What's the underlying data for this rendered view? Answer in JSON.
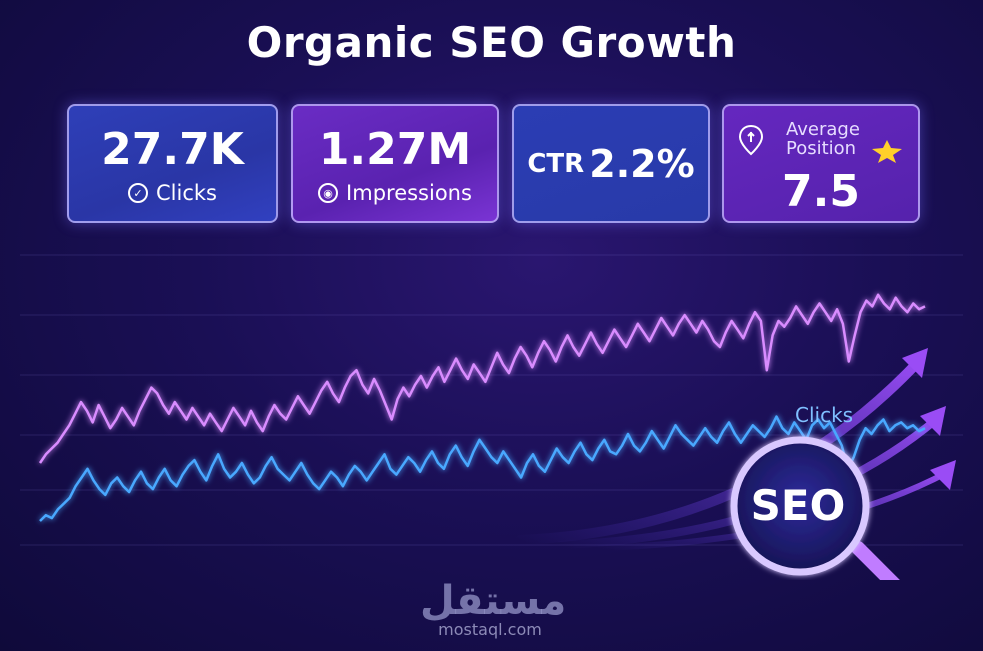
{
  "title": "Organic SEO Growth",
  "metrics": {
    "clicks": {
      "value": "27.7K",
      "label": "Clicks",
      "icon": "check-circle-icon"
    },
    "impressions": {
      "value": "1.27M",
      "label": "Impressions",
      "icon": "eye-circle-icon"
    },
    "ctr": {
      "label": "CTR",
      "value": "2.2%"
    },
    "position": {
      "label_line1": "Average",
      "label_line2": "Position",
      "value": "7.5",
      "icon": "location-pin-icon",
      "badge_icon": "star-icon"
    }
  },
  "badge": {
    "text": "SEO",
    "icon": "magnifying-glass-icon"
  },
  "watermark": {
    "arabic": "مستقل",
    "url": "mostaql.com"
  },
  "colors": {
    "clicks_line": "#4aa8ff",
    "impressions_line": "#d98cff",
    "accent_purple": "#8a3df0",
    "star": "#ffd02a"
  },
  "chart_data": {
    "type": "line",
    "title": "Organic SEO Growth",
    "xlabel": "",
    "ylabel": "",
    "grid": true,
    "x_count": 150,
    "series": [
      {
        "name": "Clicks",
        "color": "#4aa8ff",
        "values": [
          0.1,
          0.12,
          0.11,
          0.14,
          0.16,
          0.18,
          0.22,
          0.25,
          0.28,
          0.24,
          0.21,
          0.19,
          0.23,
          0.25,
          0.22,
          0.2,
          0.24,
          0.27,
          0.23,
          0.21,
          0.25,
          0.28,
          0.24,
          0.22,
          0.26,
          0.29,
          0.31,
          0.27,
          0.24,
          0.29,
          0.33,
          0.28,
          0.25,
          0.27,
          0.3,
          0.26,
          0.23,
          0.25,
          0.29,
          0.32,
          0.28,
          0.26,
          0.24,
          0.27,
          0.3,
          0.26,
          0.23,
          0.21,
          0.24,
          0.27,
          0.25,
          0.22,
          0.26,
          0.29,
          0.27,
          0.24,
          0.27,
          0.3,
          0.33,
          0.28,
          0.26,
          0.29,
          0.32,
          0.3,
          0.27,
          0.31,
          0.34,
          0.3,
          0.28,
          0.33,
          0.36,
          0.32,
          0.29,
          0.34,
          0.38,
          0.35,
          0.32,
          0.3,
          0.34,
          0.31,
          0.28,
          0.25,
          0.3,
          0.33,
          0.29,
          0.27,
          0.31,
          0.35,
          0.32,
          0.3,
          0.34,
          0.37,
          0.33,
          0.31,
          0.35,
          0.38,
          0.34,
          0.33,
          0.36,
          0.4,
          0.36,
          0.34,
          0.37,
          0.41,
          0.38,
          0.35,
          0.39,
          0.43,
          0.4,
          0.38,
          0.36,
          0.39,
          0.42,
          0.39,
          0.37,
          0.41,
          0.44,
          0.4,
          0.37,
          0.4,
          0.43,
          0.41,
          0.39,
          0.42,
          0.46,
          0.42,
          0.4,
          0.44,
          0.41,
          0.38,
          0.43,
          0.45,
          0.42,
          0.44,
          0.4,
          0.36,
          0.28,
          0.32,
          0.38,
          0.42,
          0.4,
          0.43,
          0.45,
          0.41,
          0.43,
          0.44,
          0.42,
          0.43,
          0.41,
          0.42
        ]
      },
      {
        "name": "Impressions",
        "color": "#d98cff",
        "values": [
          0.3,
          0.33,
          0.35,
          0.37,
          0.4,
          0.43,
          0.47,
          0.51,
          0.48,
          0.44,
          0.5,
          0.46,
          0.42,
          0.45,
          0.49,
          0.46,
          0.43,
          0.48,
          0.52,
          0.56,
          0.54,
          0.5,
          0.47,
          0.51,
          0.48,
          0.45,
          0.49,
          0.46,
          0.43,
          0.47,
          0.44,
          0.41,
          0.45,
          0.49,
          0.46,
          0.43,
          0.48,
          0.44,
          0.41,
          0.46,
          0.5,
          0.47,
          0.45,
          0.49,
          0.53,
          0.5,
          0.47,
          0.51,
          0.55,
          0.58,
          0.54,
          0.51,
          0.56,
          0.6,
          0.62,
          0.57,
          0.54,
          0.59,
          0.55,
          0.5,
          0.45,
          0.52,
          0.56,
          0.53,
          0.57,
          0.6,
          0.56,
          0.6,
          0.63,
          0.58,
          0.62,
          0.66,
          0.62,
          0.59,
          0.64,
          0.61,
          0.58,
          0.63,
          0.68,
          0.64,
          0.61,
          0.66,
          0.7,
          0.67,
          0.63,
          0.68,
          0.72,
          0.69,
          0.65,
          0.7,
          0.74,
          0.7,
          0.67,
          0.71,
          0.75,
          0.71,
          0.68,
          0.72,
          0.76,
          0.73,
          0.7,
          0.74,
          0.78,
          0.75,
          0.72,
          0.76,
          0.8,
          0.77,
          0.74,
          0.78,
          0.81,
          0.78,
          0.75,
          0.79,
          0.76,
          0.72,
          0.7,
          0.75,
          0.79,
          0.76,
          0.73,
          0.78,
          0.82,
          0.79,
          0.62,
          0.74,
          0.79,
          0.77,
          0.8,
          0.84,
          0.81,
          0.78,
          0.82,
          0.85,
          0.82,
          0.79,
          0.83,
          0.78,
          0.65,
          0.74,
          0.82,
          0.86,
          0.84,
          0.88,
          0.85,
          0.83,
          0.87,
          0.84,
          0.82,
          0.85,
          0.83,
          0.84
        ]
      }
    ],
    "annotations": [
      "Clicks"
    ]
  }
}
